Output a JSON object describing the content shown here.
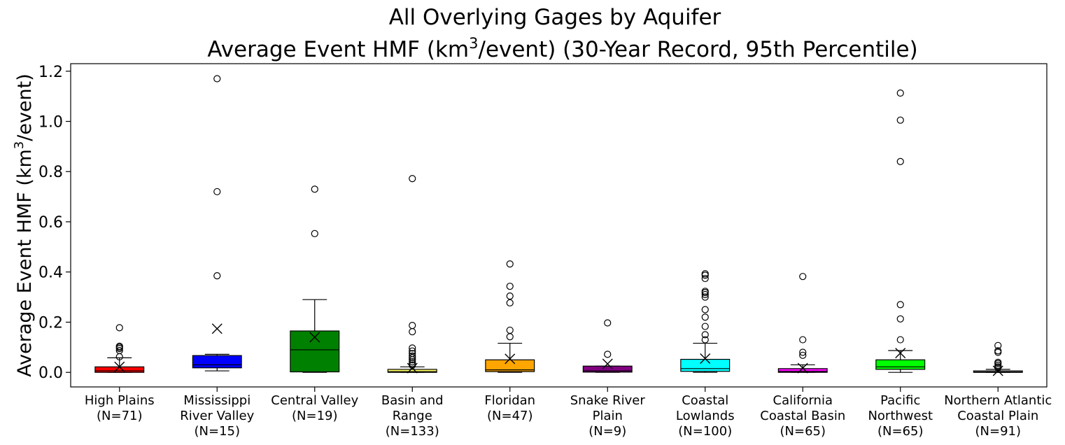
{
  "chart_data": {
    "type": "box",
    "title_line1": "All Overlying Gages by Aquifer",
    "title_line2_pre": "Average Event HMF (km",
    "title_line2_sup": "3",
    "title_line2_post": "/event) (30-Year Record, 95th Percentile)",
    "ylabel_pre": "Average Event HMF (km",
    "ylabel_sup": "3",
    "ylabel_post": "/event)",
    "ylim": [
      -0.058,
      1.23
    ],
    "yticks": [
      0.0,
      0.2,
      0.4,
      0.6,
      0.8,
      1.0,
      1.2
    ],
    "ytick_labels": [
      "0.0",
      "0.2",
      "0.4",
      "0.6",
      "0.8",
      "1.0",
      "1.2"
    ],
    "grid": false,
    "mean_marker": "x",
    "groups": [
      {
        "label_lines": [
          "High Plains",
          "(N=71)"
        ],
        "color": "#ff0000",
        "whisker_low": 0.0,
        "q1": 0.0,
        "median": 0.006,
        "q3": 0.022,
        "whisker_high": 0.058,
        "mean": 0.022,
        "outliers": [
          0.062,
          0.087,
          0.095,
          0.1,
          0.104,
          0.178
        ]
      },
      {
        "label_lines": [
          "Mississippi",
          "River Valley",
          "(N=15)"
        ],
        "color": "#0000ff",
        "whisker_low": 0.006,
        "q1": 0.018,
        "median": 0.03,
        "q3": 0.067,
        "whisker_high": 0.072,
        "mean": 0.174,
        "outliers": [
          0.385,
          0.72,
          1.17
        ]
      },
      {
        "label_lines": [
          "Central Valley",
          "(N=19)"
        ],
        "color": "#008000",
        "whisker_low": 0.0,
        "q1": 0.002,
        "median": 0.09,
        "q3": 0.165,
        "whisker_high": 0.29,
        "mean": 0.14,
        "outliers": [
          0.553,
          0.73
        ]
      },
      {
        "label_lines": [
          "Basin and",
          "Range",
          "(N=133)"
        ],
        "color": "#ffff66",
        "whisker_low": 0.0,
        "q1": 0.0,
        "median": 0.003,
        "q3": 0.012,
        "whisker_high": 0.022,
        "mean": 0.017,
        "outliers": [
          0.028,
          0.035,
          0.042,
          0.05,
          0.058,
          0.065,
          0.075,
          0.085,
          0.097,
          0.162,
          0.187,
          0.772
        ]
      },
      {
        "label_lines": [
          "Floridan",
          "(N=47)"
        ],
        "color": "#ffa500",
        "whisker_low": 0.0,
        "q1": 0.003,
        "median": 0.01,
        "q3": 0.05,
        "whisker_high": 0.116,
        "mean": 0.054,
        "outliers": [
          0.142,
          0.168,
          0.277,
          0.304,
          0.343,
          0.432
        ]
      },
      {
        "label_lines": [
          "Snake River",
          "Plain",
          "(N=9)"
        ],
        "color": "#800080",
        "whisker_low": 0.0,
        "q1": 0.001,
        "median": 0.006,
        "q3": 0.025,
        "whisker_high": 0.025,
        "mean": 0.034,
        "outliers": [
          0.072,
          0.197
        ]
      },
      {
        "label_lines": [
          "Coastal",
          "Lowlands",
          "(N=100)"
        ],
        "color": "#00ffff",
        "whisker_low": 0.0,
        "q1": 0.004,
        "median": 0.015,
        "q3": 0.052,
        "whisker_high": 0.116,
        "mean": 0.055,
        "outliers": [
          0.13,
          0.15,
          0.183,
          0.22,
          0.25,
          0.3,
          0.31,
          0.318,
          0.323,
          0.374,
          0.387,
          0.393
        ]
      },
      {
        "label_lines": [
          "California",
          "Coastal Basin",
          "(N=65)"
        ],
        "color": "#ff00ff",
        "whisker_low": 0.0,
        "q1": 0.0,
        "median": 0.004,
        "q3": 0.015,
        "whisker_high": 0.03,
        "mean": 0.017,
        "outliers": [
          0.068,
          0.08,
          0.13,
          0.382
        ]
      },
      {
        "label_lines": [
          "Pacific",
          "Northwest",
          "(N=65)"
        ],
        "color": "#00ff00",
        "whisker_low": 0.0,
        "q1": 0.012,
        "median": 0.022,
        "q3": 0.05,
        "whisker_high": 0.087,
        "mean": 0.077,
        "outliers": [
          0.13,
          0.213,
          0.27,
          0.84,
          1.005,
          1.113
        ]
      },
      {
        "label_lines": [
          "Northern Atlantic",
          "Coastal Plain",
          "(N=91)"
        ],
        "color": "#ffffff",
        "whisker_low": 0.0,
        "q1": 0.0,
        "median": 0.002,
        "q3": 0.006,
        "whisker_high": 0.012,
        "mean": 0.006,
        "outliers": [
          0.018,
          0.022,
          0.028,
          0.035,
          0.04,
          0.08,
          0.086,
          0.107
        ]
      }
    ]
  }
}
